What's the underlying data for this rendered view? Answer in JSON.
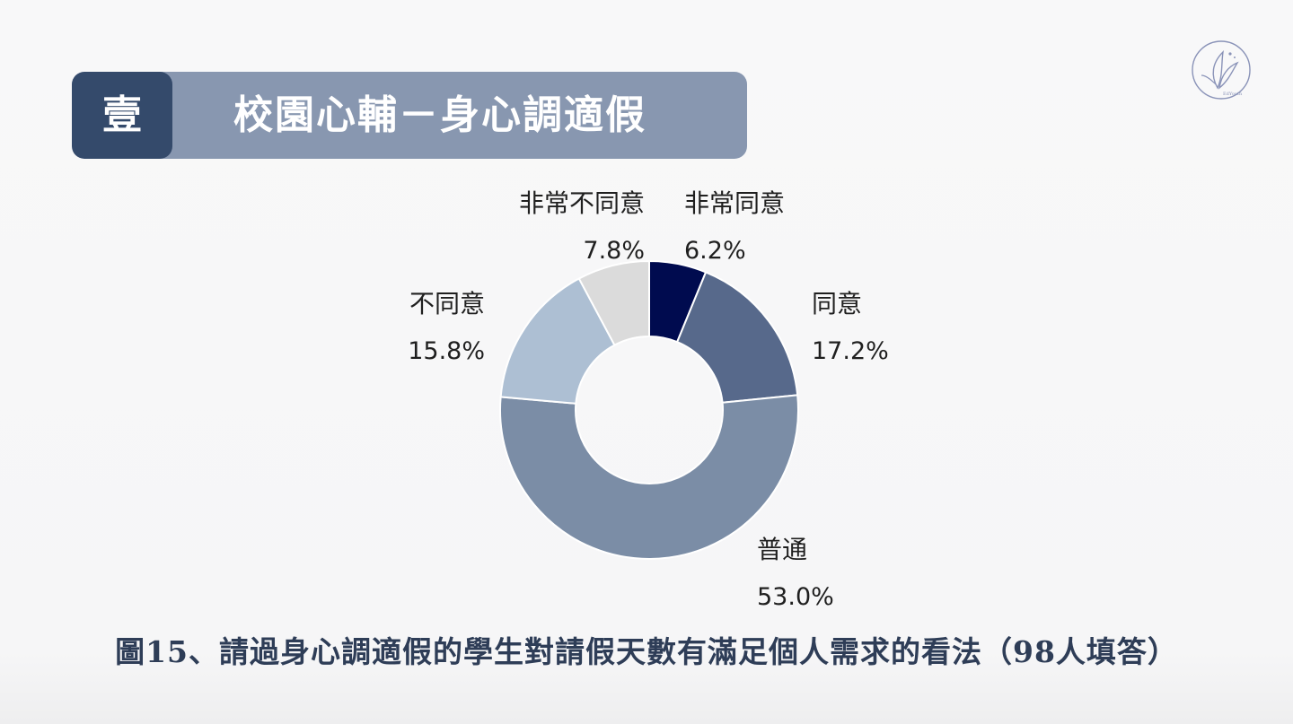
{
  "header": {
    "number": "壹",
    "title": "校園心輔－身心調適假"
  },
  "logo": {
    "icon": "edyouth-leaf-logo-icon",
    "text": "EdYouth"
  },
  "caption": "圖15、請過身心調適假的學生對請假天數有滿足個人需求的看法（98人填答）",
  "chart_data": {
    "type": "pie",
    "donut": true,
    "slices": [
      {
        "label": "非常同意",
        "value": 6.2,
        "value_label": "6.2%",
        "color": "#000b4f"
      },
      {
        "label": "同意",
        "value": 17.2,
        "value_label": "17.2%",
        "color": "#57698b"
      },
      {
        "label": "普通",
        "value": 53.0,
        "value_label": "53.0%",
        "color": "#7b8da6"
      },
      {
        "label": "不同意",
        "value": 15.8,
        "value_label": "15.8%",
        "color": "#adbfd3"
      },
      {
        "label": "非常不同意",
        "value": 7.8,
        "value_label": "7.8%",
        "color": "#dbdbdb"
      }
    ],
    "start_angle": "12-o'clock",
    "direction": "clockwise",
    "legend": "none (labels placed outside slices)"
  }
}
